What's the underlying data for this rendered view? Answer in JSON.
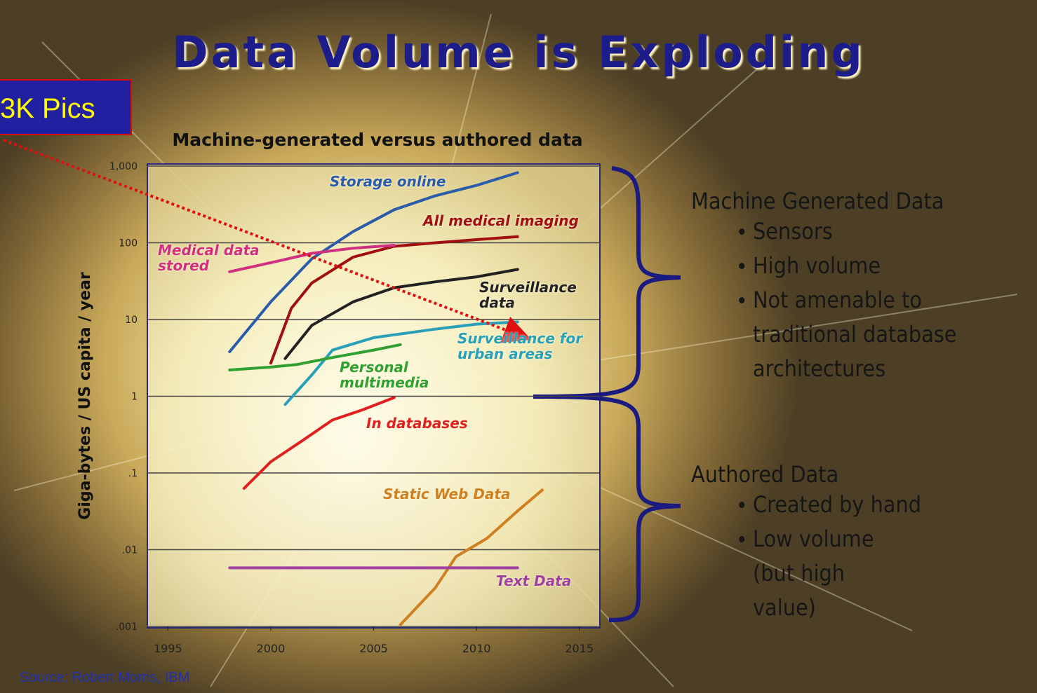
{
  "slide": {
    "title": "Data Volume is Exploding",
    "callout": "3K Pics",
    "source": "Source: Robert Morris, IBM",
    "groups": [
      {
        "heading": "Machine Generated Data",
        "bullets": [
          "Sensors",
          "High volume",
          "Not amenable to traditional database architectures"
        ]
      },
      {
        "heading": "Authored Data",
        "bullets": [
          "Created by hand",
          "Low volume (but high value)"
        ]
      }
    ]
  },
  "chart_data": {
    "type": "line",
    "title": "Machine-generated versus authored data",
    "y_label": "Giga-bytes / US capita / year",
    "ylog": true,
    "grid": true,
    "xlim": [
      1994,
      2016
    ],
    "xticks": [
      1995,
      2000,
      2005,
      2010,
      2015
    ],
    "ylim": [
      0.001,
      1000
    ],
    "yticks": [
      {
        "value": 1000,
        "label": "1,000"
      },
      100,
      10,
      1,
      {
        "value": 0.1,
        "label": ".1"
      },
      {
        "value": 0.01,
        "label": ".01"
      },
      {
        "value": 0.001,
        "label": ".001"
      }
    ],
    "series": [
      {
        "name": "Storage online",
        "color": "#2a5caa",
        "x": [
          1998,
          2000,
          2002,
          2004,
          2006,
          2008,
          2010,
          2012
        ],
        "values": [
          3.8,
          17,
          62,
          140,
          270,
          410,
          560,
          820
        ]
      },
      {
        "name": "All medical imaging",
        "color": "#a01010",
        "x": [
          2000,
          2001,
          2002,
          2004,
          2006,
          2008,
          2010,
          2012
        ],
        "values": [
          2.7,
          14,
          30,
          65,
          90,
          100,
          110,
          120
        ]
      },
      {
        "name": "Medical data stored",
        "color": "#d03080",
        "x": [
          1998,
          2000,
          2002,
          2004,
          2006
        ],
        "values": [
          42,
          55,
          73,
          85,
          93
        ]
      },
      {
        "name": "Surveillance data",
        "color": "#222222",
        "x": [
          2000.7,
          2002,
          2004,
          2006,
          2008,
          2010,
          2012
        ],
        "values": [
          3.1,
          8.4,
          17,
          26,
          31,
          36,
          45
        ]
      },
      {
        "name": "Surveillance for urban areas",
        "color": "#2aa0b8",
        "x": [
          2000.7,
          2002,
          2003,
          2005,
          2008,
          2010,
          2012
        ],
        "values": [
          0.78,
          1.9,
          4,
          5.8,
          7.5,
          8.7,
          9.3
        ]
      },
      {
        "name": "Personal multimedia",
        "color": "#30a030",
        "x": [
          1998,
          2000,
          2001.3,
          2003,
          2005,
          2006.3
        ],
        "values": [
          2.2,
          2.4,
          2.6,
          3.2,
          4,
          4.7
        ]
      },
      {
        "name": "In databases",
        "color": "#e02020",
        "x": [
          1998.7,
          2000,
          2001.5,
          2003,
          2004.5,
          2006
        ],
        "values": [
          0.063,
          0.14,
          0.26,
          0.49,
          0.67,
          0.96
        ]
      },
      {
        "name": "Static Web Data",
        "color": "#d08020",
        "x": [
          2006.3,
          2008,
          2009,
          2010.5,
          2012,
          2013.2
        ],
        "values": [
          0.00105,
          0.0032,
          0.0081,
          0.014,
          0.032,
          0.06
        ]
      },
      {
        "name": "Text Data",
        "color": "#a040a0",
        "x": [
          1998,
          2012
        ],
        "values": [
          0.0058,
          0.0058
        ]
      }
    ]
  }
}
